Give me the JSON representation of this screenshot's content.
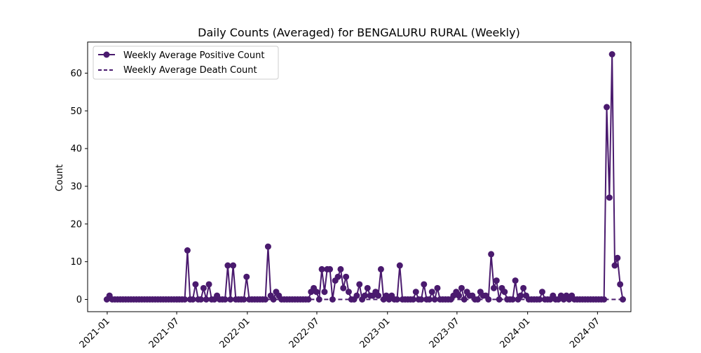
{
  "chart_data": {
    "type": "line",
    "title": "Daily Counts (Averaged) for BENGALURU RURAL (Weekly)",
    "xlabel": "",
    "ylabel": "Count",
    "x_tick_labels": [
      "2021-01",
      "2021-07",
      "2022-01",
      "2022-07",
      "2023-01",
      "2023-07",
      "2024-01",
      "2024-07"
    ],
    "y_tick_labels": [
      "0",
      "10",
      "20",
      "30",
      "40",
      "50",
      "60"
    ],
    "xlim": [
      "2020-11-11",
      "2024-09-26"
    ],
    "ylim": [
      -3.25,
      68.25
    ],
    "grid": false,
    "legend_position": "top-left",
    "series": [
      {
        "name": "Weekly Average Positive Count",
        "color": "#4a1a6e",
        "style": "solid",
        "marker": "circle",
        "x": [
          "2020-12-31",
          "2021-01-07",
          "2021-01-14",
          "2021-01-21",
          "2021-01-28",
          "2021-02-04",
          "2021-02-11",
          "2021-02-18",
          "2021-02-25",
          "2021-03-04",
          "2021-03-11",
          "2021-03-18",
          "2021-03-25",
          "2021-04-01",
          "2021-04-08",
          "2021-04-15",
          "2021-04-22",
          "2021-04-29",
          "2021-05-06",
          "2021-05-13",
          "2021-05-20",
          "2021-05-27",
          "2021-06-03",
          "2021-06-10",
          "2021-06-17",
          "2021-06-24",
          "2021-07-01",
          "2021-07-08",
          "2021-07-15",
          "2021-07-22",
          "2021-07-29",
          "2021-08-05",
          "2021-08-12",
          "2021-08-19",
          "2021-08-26",
          "2021-09-02",
          "2021-09-09",
          "2021-09-16",
          "2021-09-23",
          "2021-09-30",
          "2021-10-07",
          "2021-10-14",
          "2021-10-21",
          "2021-10-28",
          "2021-11-04",
          "2021-11-11",
          "2021-11-18",
          "2021-11-25",
          "2021-12-02",
          "2021-12-09",
          "2021-12-16",
          "2021-12-23",
          "2021-12-30",
          "2022-01-06",
          "2022-01-13",
          "2022-01-20",
          "2022-01-27",
          "2022-02-03",
          "2022-02-10",
          "2022-02-17",
          "2022-02-24",
          "2022-03-03",
          "2022-03-10",
          "2022-03-17",
          "2022-03-24",
          "2022-03-31",
          "2022-04-07",
          "2022-04-14",
          "2022-04-21",
          "2022-04-28",
          "2022-05-05",
          "2022-05-12",
          "2022-05-19",
          "2022-05-26",
          "2022-06-02",
          "2022-06-09",
          "2022-06-16",
          "2022-06-23",
          "2022-06-30",
          "2022-07-07",
          "2022-07-14",
          "2022-07-21",
          "2022-07-28",
          "2022-08-04",
          "2022-08-11",
          "2022-08-18",
          "2022-08-25",
          "2022-09-01",
          "2022-09-08",
          "2022-09-15",
          "2022-09-22",
          "2022-09-29",
          "2022-10-06",
          "2022-10-13",
          "2022-10-20",
          "2022-10-27",
          "2022-11-03",
          "2022-11-10",
          "2022-11-17",
          "2022-11-24",
          "2022-12-01",
          "2022-12-08",
          "2022-12-15",
          "2022-12-22",
          "2022-12-29",
          "2023-01-05",
          "2023-01-12",
          "2023-01-19",
          "2023-01-26",
          "2023-02-02",
          "2023-02-09",
          "2023-02-16",
          "2023-02-23",
          "2023-03-02",
          "2023-03-09",
          "2023-03-16",
          "2023-03-23",
          "2023-03-30",
          "2023-04-06",
          "2023-04-13",
          "2023-04-20",
          "2023-04-27",
          "2023-05-04",
          "2023-05-11",
          "2023-05-18",
          "2023-05-25",
          "2023-06-01",
          "2023-06-08",
          "2023-06-15",
          "2023-06-22",
          "2023-06-29",
          "2023-07-06",
          "2023-07-13",
          "2023-07-20",
          "2023-07-27",
          "2023-08-03",
          "2023-08-10",
          "2023-08-17",
          "2023-08-24",
          "2023-08-31",
          "2023-09-07",
          "2023-09-14",
          "2023-09-21",
          "2023-09-28",
          "2023-10-05",
          "2023-10-12",
          "2023-10-19",
          "2023-10-26",
          "2023-11-02",
          "2023-11-09",
          "2023-11-16",
          "2023-11-23",
          "2023-11-30",
          "2023-12-07",
          "2023-12-14",
          "2023-12-21",
          "2023-12-28",
          "2024-01-04",
          "2024-01-11",
          "2024-01-18",
          "2024-01-25",
          "2024-02-01",
          "2024-02-08",
          "2024-02-15",
          "2024-02-22",
          "2024-02-29",
          "2024-03-07",
          "2024-03-14",
          "2024-03-21",
          "2024-03-28",
          "2024-04-04",
          "2024-04-11",
          "2024-04-18",
          "2024-04-25",
          "2024-05-02",
          "2024-05-09",
          "2024-05-16",
          "2024-05-23",
          "2024-05-30",
          "2024-06-06",
          "2024-06-13",
          "2024-06-20",
          "2024-06-27",
          "2024-07-04",
          "2024-07-11",
          "2024-07-18",
          "2024-07-25",
          "2024-08-01",
          "2024-08-08",
          "2024-08-15",
          "2024-08-22",
          "2024-08-29",
          "2024-09-05"
        ],
        "y": [
          0,
          1,
          0,
          0,
          0,
          0,
          0,
          0,
          0,
          0,
          0,
          0,
          0,
          0,
          0,
          0,
          0,
          0,
          0,
          0,
          0,
          0,
          0,
          0,
          0,
          0,
          0,
          0,
          0,
          0,
          13,
          0,
          0,
          4,
          0,
          0,
          3,
          0,
          4,
          0,
          0,
          1,
          0,
          0,
          0,
          9,
          0,
          9,
          0,
          0,
          0,
          0,
          6,
          0,
          0,
          0,
          0,
          0,
          0,
          0,
          14,
          1,
          0,
          2,
          1,
          0,
          0,
          0,
          0,
          0,
          0,
          0,
          0,
          0,
          0,
          0,
          2,
          3,
          2,
          0,
          8,
          2,
          8,
          8,
          0,
          5,
          6,
          8,
          3,
          6,
          2,
          0,
          0,
          1,
          4,
          0,
          1,
          3,
          1,
          1,
          2,
          1,
          8,
          0,
          1,
          0,
          1,
          0,
          0,
          9,
          0,
          0,
          0,
          0,
          0,
          2,
          0,
          0,
          4,
          0,
          0,
          2,
          0,
          3,
          0,
          0,
          0,
          0,
          0,
          1,
          2,
          1,
          3,
          0,
          2,
          1,
          1,
          0,
          0,
          2,
          1,
          1,
          0,
          12,
          3,
          5,
          0,
          3,
          2,
          0,
          0,
          0,
          5,
          0,
          1,
          3,
          1,
          0,
          0,
          0,
          0,
          0,
          2,
          0,
          0,
          0,
          1,
          0,
          0,
          1,
          0,
          1,
          0,
          1,
          0,
          0,
          0,
          0,
          0,
          0,
          0,
          0,
          0,
          0,
          0,
          0,
          51,
          27,
          65,
          9,
          11,
          4,
          0
        ]
      },
      {
        "name": "Weekly Average Death Count",
        "color": "#4a1a6e",
        "style": "dashed",
        "marker": "none",
        "x": [
          "2020-12-31",
          "2024-09-05"
        ],
        "y": [
          0,
          0
        ]
      }
    ]
  }
}
